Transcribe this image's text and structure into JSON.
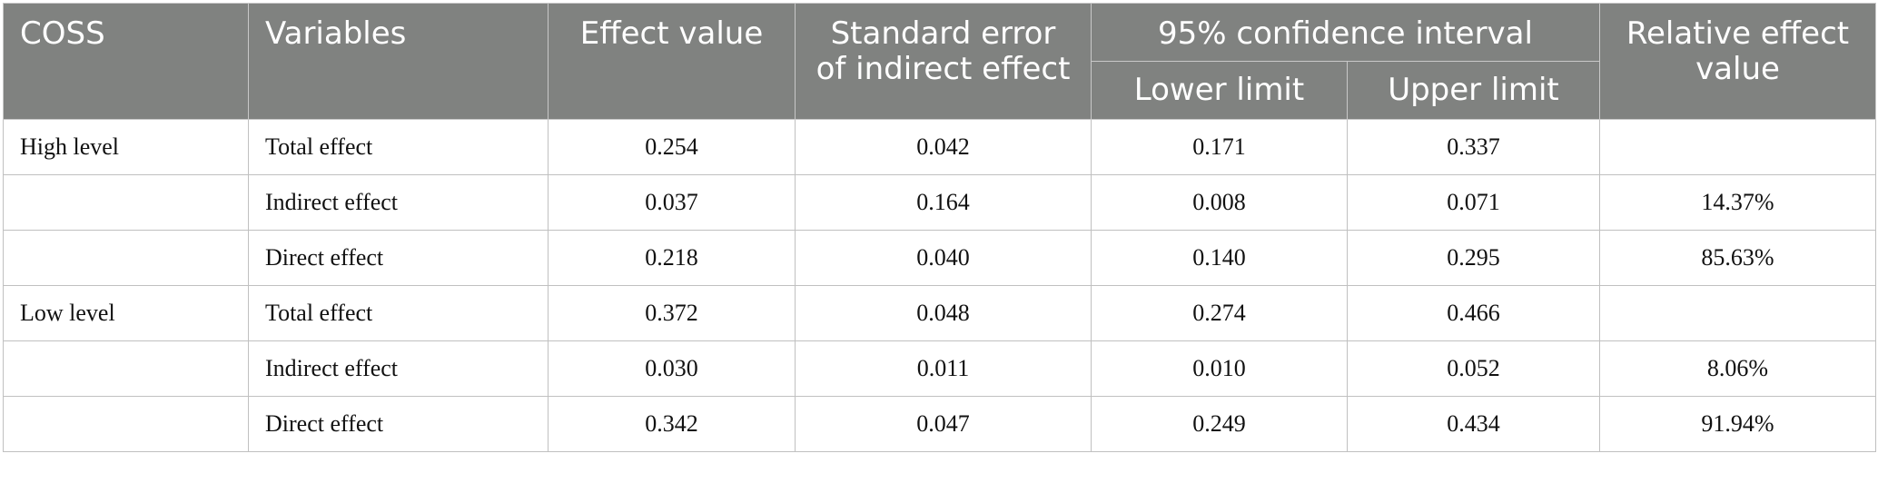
{
  "headers": {
    "coss": "COSS",
    "variables": "Variables",
    "effect_value": "Effect value",
    "std_error": "Standard error of indirect effect",
    "ci": "95% confidence interval",
    "lower": "Lower limit",
    "upper": "Upper limit",
    "relative": "Relative effect value"
  },
  "rows": [
    {
      "coss": "High level",
      "variable": "Total effect",
      "effect": "0.254",
      "se": "0.042",
      "lower": "0.171",
      "upper": "0.337",
      "relative": ""
    },
    {
      "coss": "",
      "variable": "Indirect effect",
      "effect": "0.037",
      "se": "0.164",
      "lower": "0.008",
      "upper": "0.071",
      "relative": "14.37%"
    },
    {
      "coss": "",
      "variable": "Direct effect",
      "effect": "0.218",
      "se": "0.040",
      "lower": "0.140",
      "upper": "0.295",
      "relative": "85.63%"
    },
    {
      "coss": "Low level",
      "variable": "Total effect",
      "effect": "0.372",
      "se": "0.048",
      "lower": "0.274",
      "upper": "0.466",
      "relative": ""
    },
    {
      "coss": "",
      "variable": "Indirect effect",
      "effect": "0.030",
      "se": "0.011",
      "lower": "0.010",
      "upper": "0.052",
      "relative": "8.06%"
    },
    {
      "coss": "",
      "variable": "Direct effect",
      "effect": "0.342",
      "se": "0.047",
      "lower": "0.249",
      "upper": "0.434",
      "relative": "91.94%"
    }
  ]
}
